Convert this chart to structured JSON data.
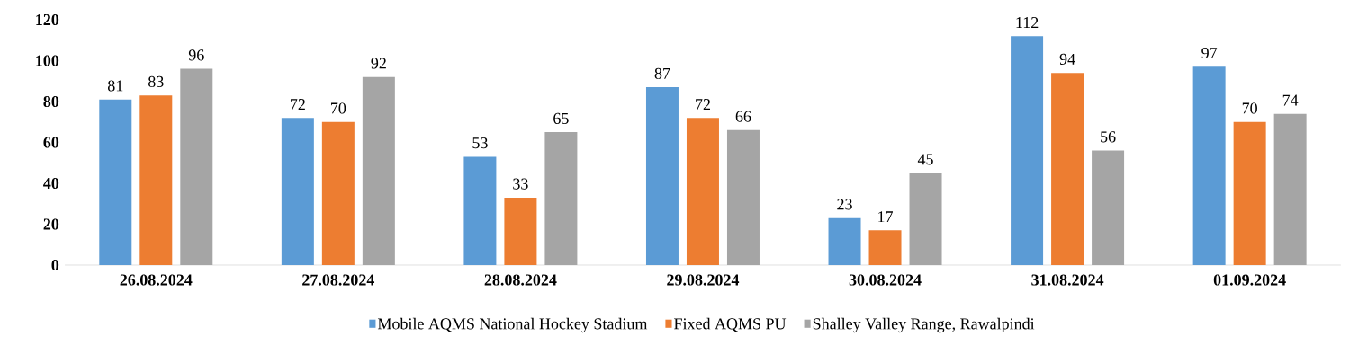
{
  "chart_data": {
    "type": "bar",
    "categories": [
      "26.08.2024",
      "27.08.2024",
      "28.08.2024",
      "29.08.2024",
      "30.08.2024",
      "31.08.2024",
      "01.09.2024"
    ],
    "series": [
      {
        "name": "Mobile AQMS National Hockey Stadium",
        "color": "#5b9bd5",
        "values": [
          81,
          72,
          53,
          87,
          23,
          112,
          97
        ]
      },
      {
        "name": "Fixed AQMS PU",
        "color": "#ed7d31",
        "values": [
          83,
          70,
          33,
          72,
          17,
          94,
          70
        ]
      },
      {
        "name": "Shalley Valley Range, Rawalpindi",
        "color": "#a5a5a5",
        "values": [
          96,
          92,
          65,
          66,
          45,
          56,
          74
        ]
      }
    ],
    "ylim": [
      0,
      120
    ],
    "yticks": [
      0,
      20,
      40,
      60,
      80,
      100,
      120
    ],
    "data_labels": true,
    "legend": "bottom",
    "grid": false
  }
}
